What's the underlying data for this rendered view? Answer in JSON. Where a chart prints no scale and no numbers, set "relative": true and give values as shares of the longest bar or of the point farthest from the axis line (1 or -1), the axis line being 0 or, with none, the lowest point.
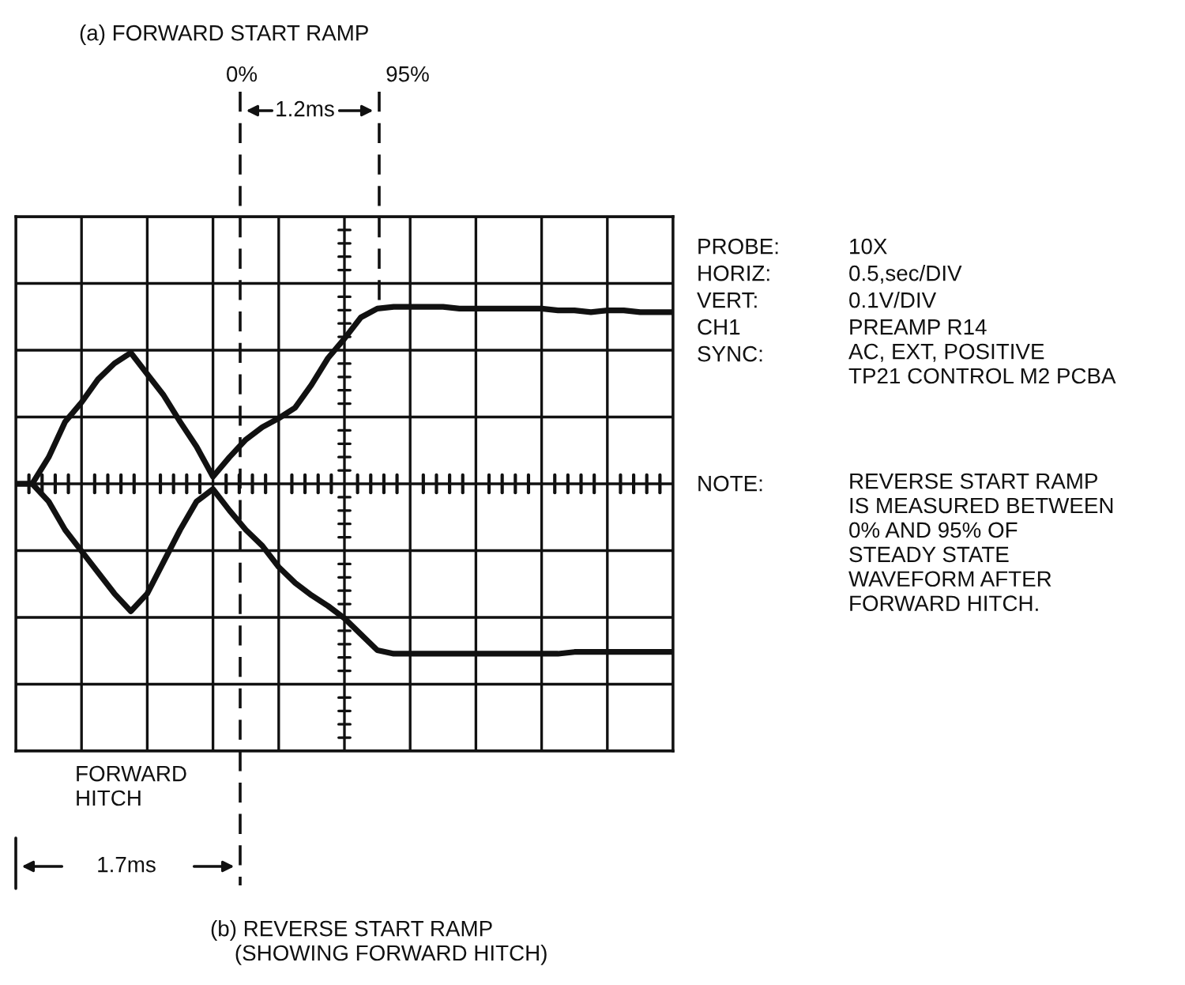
{
  "chart_data": {
    "type": "line",
    "relative": true,
    "grid": true,
    "tick_labels": false,
    "categories": [
      null,
      null,
      null,
      null,
      null,
      null,
      null,
      null,
      null,
      null,
      null,
      null,
      null,
      null,
      null,
      null,
      null,
      null,
      null,
      null,
      null,
      null,
      null,
      null,
      null,
      null,
      null,
      null,
      null,
      null,
      null,
      null,
      null,
      null,
      null,
      null,
      null,
      null,
      null,
      null,
      null
    ],
    "series": [
      {
        "color": "#111111",
        "values": [
          0,
          0,
          0.15,
          0.35,
          0.46,
          0.59,
          0.68,
          0.74,
          0.62,
          0.5,
          0.35,
          0.21,
          0.04,
          0.15,
          0.25,
          0.32,
          0.37,
          0.43,
          0.56,
          0.71,
          0.82,
          0.94,
          0.99,
          1.0,
          1.0,
          1.0,
          1.0,
          0.99,
          0.99,
          0.99,
          0.99,
          0.99,
          0.99,
          0.98,
          0.98,
          0.97,
          0.98,
          0.98,
          0.97,
          0.97,
          0.97
        ]
      },
      {
        "color": "#111111",
        "values": [
          0,
          0,
          -0.1,
          -0.26,
          -0.38,
          -0.5,
          -0.62,
          -0.72,
          -0.62,
          -0.44,
          -0.26,
          -0.1,
          -0.03,
          -0.15,
          -0.26,
          -0.35,
          -0.47,
          -0.56,
          -0.63,
          -0.69,
          -0.76,
          -0.85,
          -0.94,
          -0.96,
          -0.96,
          -0.96,
          -0.96,
          -0.96,
          -0.96,
          -0.96,
          -0.96,
          -0.96,
          -0.96,
          -0.96,
          -0.95,
          -0.95,
          -0.95,
          -0.95,
          -0.95,
          -0.95,
          -0.95
        ]
      }
    ],
    "annotations": [
      "(a) FORWARD START RAMP",
      "0%",
      "95%",
      "1.2ms",
      "PROBE:",
      "10X",
      "HORIZ:",
      "0.5,sec/DIV",
      "VERT:",
      "0.1V/DIV",
      "CH1",
      "PREAMP R14",
      "SYNC:",
      "AC, EXT, POSITIVE\nTP21 CONTROL M2 PCBA",
      "NOTE:",
      "REVERSE START RAMP\nIS MEASURED BETWEEN\n0% AND 95% OF\nSTEADY STATE\nWAVEFORM AFTER\nFORWARD HITCH.",
      "FORWARD\nHITCH",
      "1.7ms",
      "(b) REVERSE START RAMP\n    (SHOWING FORWARD HITCH)"
    ]
  }
}
